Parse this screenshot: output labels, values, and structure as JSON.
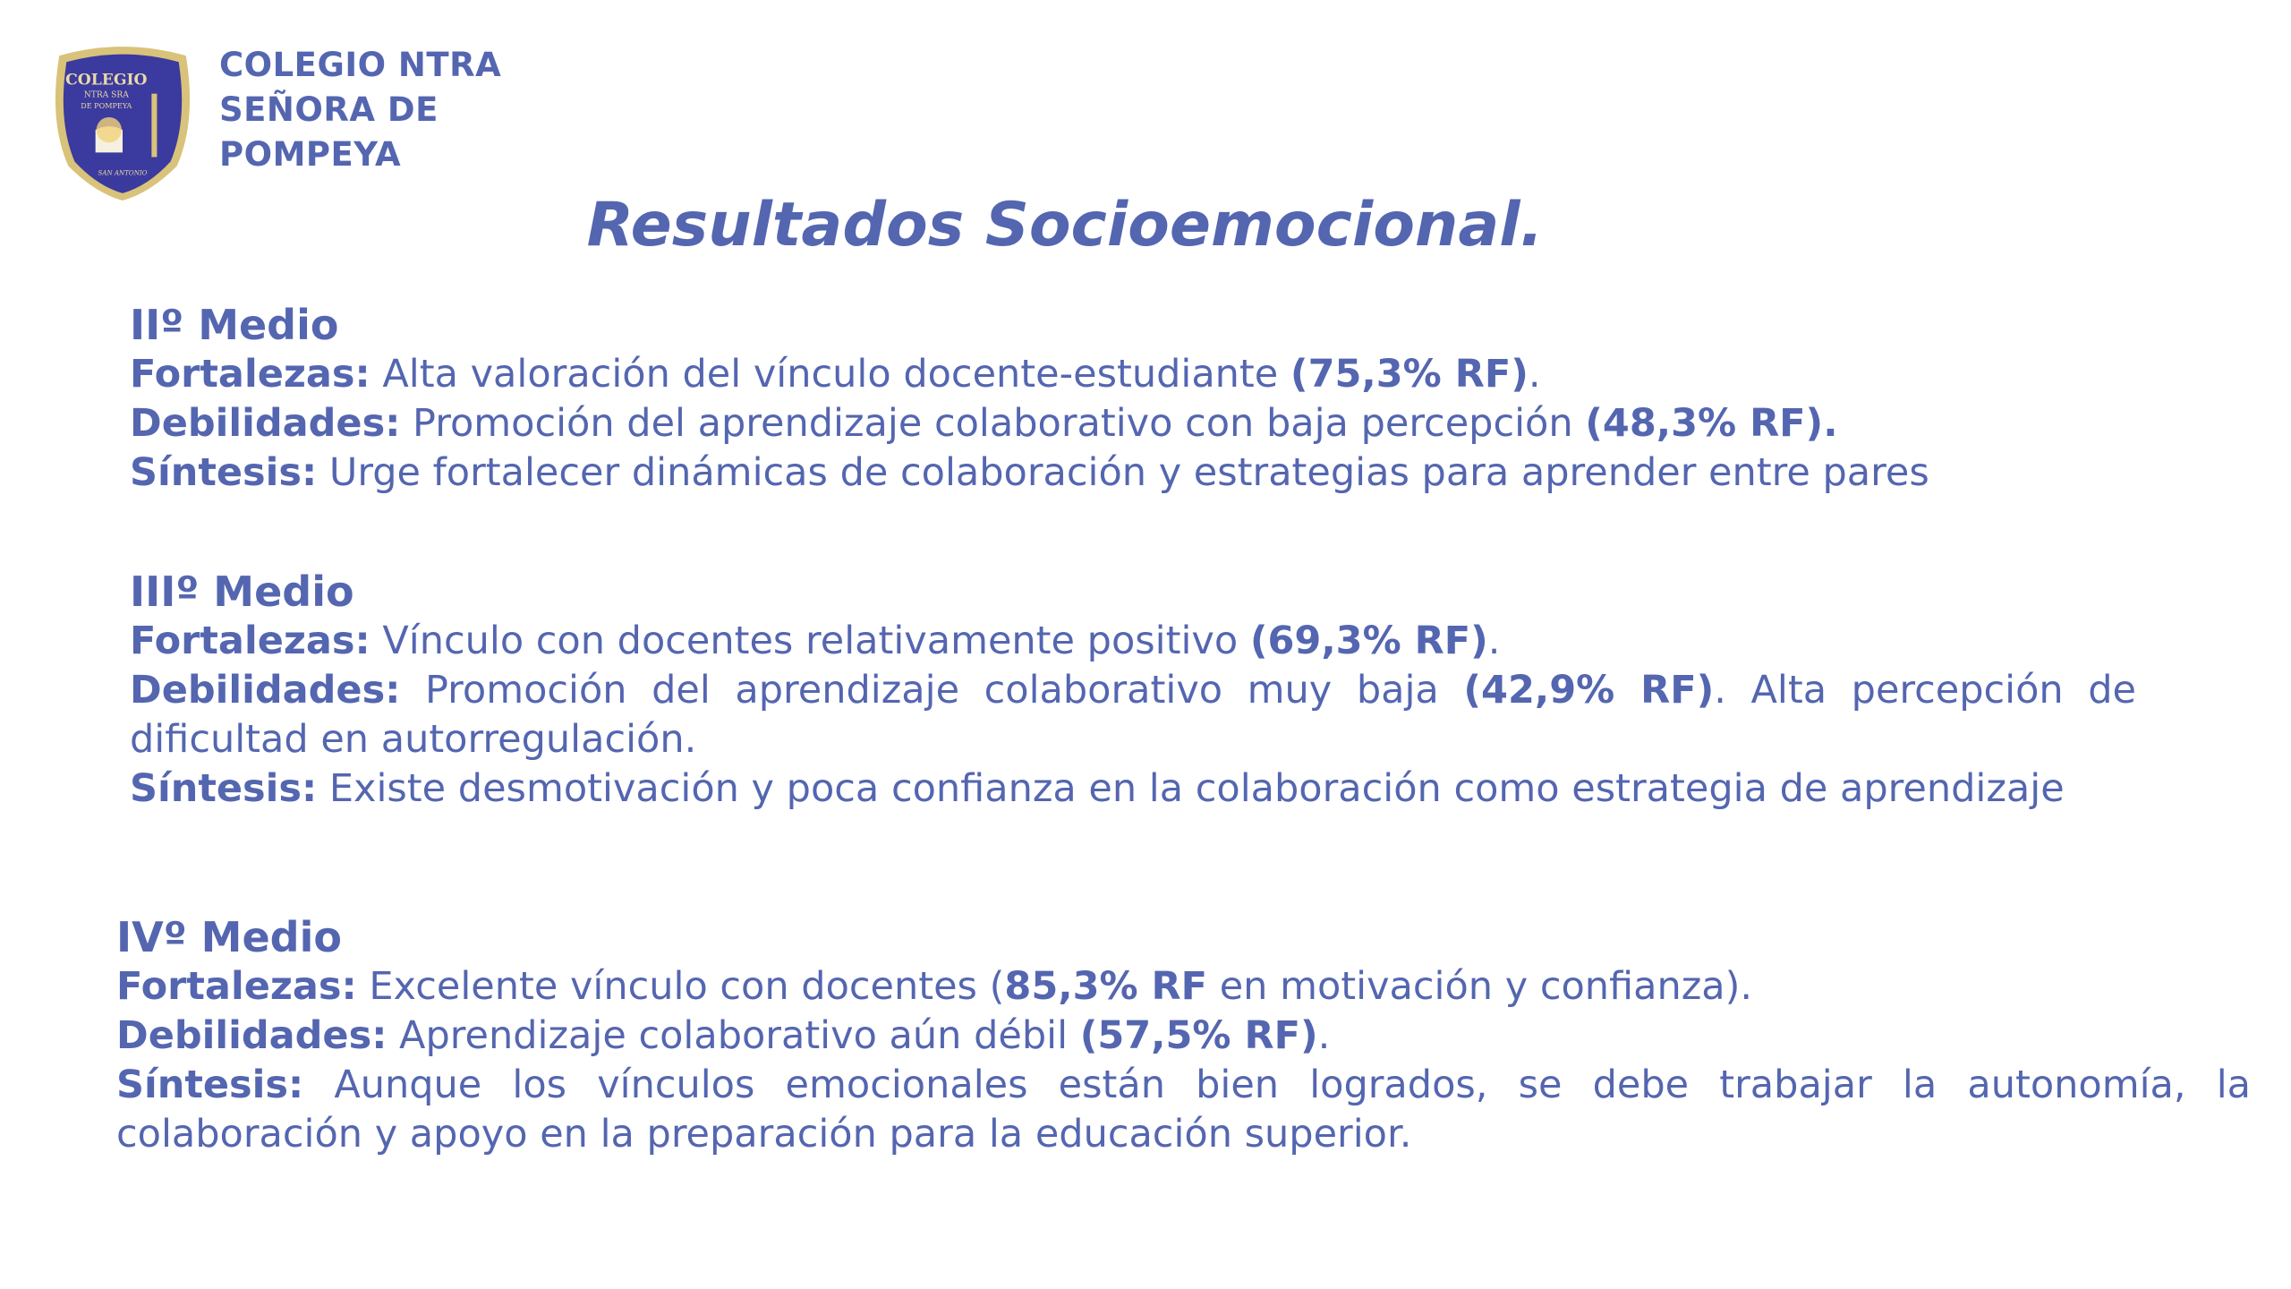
{
  "header": {
    "school_name_lines": [
      "COLEGIO NTRA",
      "SEÑORA DE",
      "POMPEYA"
    ],
    "logo_text": {
      "top": "COLEGIO",
      "middle1": "NTRA SRA",
      "middle2": "DE POMPEYA",
      "bottom": "SAN ANTONIO"
    },
    "title": "Resultados Socioemocional."
  },
  "colors": {
    "text": "#5466b0",
    "shield": "#3b3a9e",
    "shield_border": "#d9c27a"
  },
  "sections": [
    {
      "heading": "IIº Medio",
      "rows": [
        {
          "label": "Fortalezas:",
          "parts": [
            {
              "t": " Alta valoración del vínculo docente-estudiante ",
              "b": false
            },
            {
              "t": "(75,3% RF)",
              "b": true
            },
            {
              "t": ".",
              "b": false
            }
          ]
        },
        {
          "label": "Debilidades:",
          "parts": [
            {
              "t": " Promoción del aprendizaje colaborativo con baja percepción ",
              "b": false
            },
            {
              "t": "(48,3% RF).",
              "b": true
            }
          ]
        },
        {
          "label": "Síntesis:",
          "parts": [
            {
              "t": " Urge fortalecer dinámicas de colaboración y estrategias para aprender entre pares",
              "b": false
            }
          ]
        }
      ]
    },
    {
      "heading": "IIIº Medio",
      "rows": [
        {
          "label": "Fortalezas:",
          "parts": [
            {
              "t": " Vínculo con docentes relativamente positivo ",
              "b": false
            },
            {
              "t": "(69,3% RF)",
              "b": true
            },
            {
              "t": ".",
              "b": false
            }
          ]
        },
        {
          "label": "Debilidades:",
          "parts": [
            {
              "t": " Promoción del aprendizaje colaborativo muy baja ",
              "b": false
            },
            {
              "t": "(42,9% RF)",
              "b": true
            },
            {
              "t": ". Alta percepción de dificultad en autorregulación.",
              "b": false
            }
          ]
        },
        {
          "label": "Síntesis:",
          "parts": [
            {
              "t": " Existe desmotivación y poca confianza en la colaboración como estrategia de aprendizaje",
              "b": false
            }
          ]
        }
      ]
    },
    {
      "heading": "IVº Medio",
      "rows": [
        {
          "label": "Fortalezas:",
          "parts": [
            {
              "t": " Excelente vínculo con docentes (",
              "b": false
            },
            {
              "t": "85,3% RF",
              "b": true
            },
            {
              "t": " en motivación y confianza).",
              "b": false
            }
          ]
        },
        {
          "label": "Debilidades:",
          "parts": [
            {
              "t": " Aprendizaje colaborativo aún débil ",
              "b": false
            },
            {
              "t": "(57,5% RF)",
              "b": true
            },
            {
              "t": ".",
              "b": false
            }
          ]
        },
        {
          "label": "Síntesis:",
          "parts": [
            {
              "t": " Aunque los vínculos emocionales están bien logrados, se debe trabajar la autonomía, la colaboración y apoyo en la preparación para la educación superior.",
              "b": false
            }
          ]
        }
      ]
    }
  ]
}
